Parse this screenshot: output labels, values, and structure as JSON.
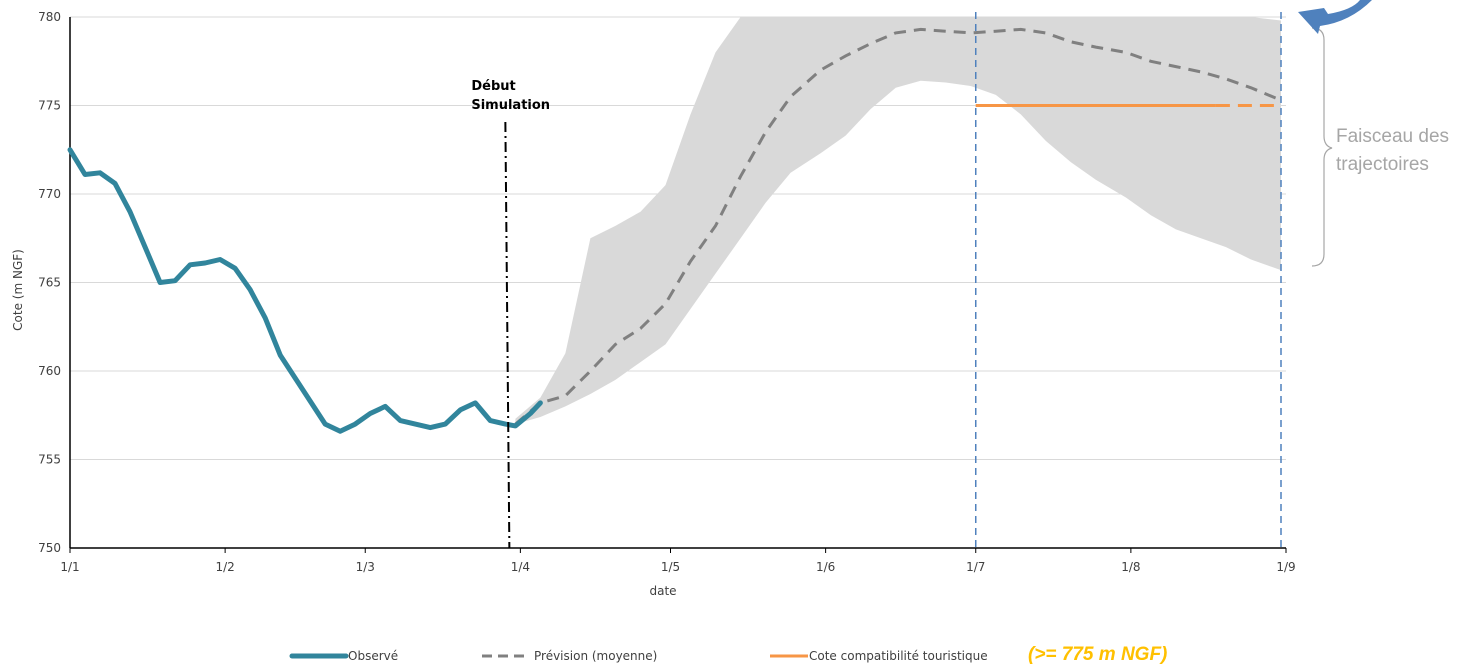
{
  "chart_data": {
    "type": "line",
    "xlabel": "date",
    "ylabel": "Cote (m NGF)",
    "ylim": [
      750,
      780
    ],
    "yticks": [
      750,
      755,
      760,
      765,
      770,
      775,
      780
    ],
    "xlim": [
      "01-01",
      "09-01"
    ],
    "x_ticks": [
      {
        "date": "01-01",
        "label": "1/1"
      },
      {
        "date": "02-01",
        "label": "1/2"
      },
      {
        "date": "03-01",
        "label": "1/3"
      },
      {
        "date": "04-01",
        "label": "1/4"
      },
      {
        "date": "05-01",
        "label": "1/5"
      },
      {
        "date": "06-01",
        "label": "1/6"
      },
      {
        "date": "07-01",
        "label": "1/7"
      },
      {
        "date": "08-01",
        "label": "1/8"
      },
      {
        "date": "09-01",
        "label": "1/9"
      }
    ],
    "grid": "horizontal",
    "legend_position": "bottom",
    "series": [
      {
        "name": "Observé",
        "style": "solid",
        "color": "#31859c",
        "x": [
          "01-01",
          "01-04",
          "01-07",
          "01-10",
          "01-13",
          "01-16",
          "01-19",
          "01-22",
          "01-25",
          "01-28",
          "01-31",
          "02-03",
          "02-06",
          "02-09",
          "02-12",
          "02-15",
          "02-18",
          "02-21",
          "02-24",
          "02-27",
          "03-02",
          "03-05",
          "03-08",
          "03-11",
          "03-14",
          "03-17",
          "03-20",
          "03-23",
          "03-26",
          "03-29",
          "03-31",
          "04-03",
          "04-05"
        ],
        "y": [
          772.5,
          771.1,
          771.2,
          770.6,
          769.0,
          767.0,
          765.0,
          765.1,
          766.0,
          766.1,
          766.3,
          765.8,
          764.6,
          763.0,
          760.9,
          759.6,
          758.3,
          757.0,
          756.6,
          757.0,
          757.6,
          758.0,
          757.2,
          757.0,
          756.8,
          757.0,
          757.8,
          758.2,
          757.2,
          757.0,
          756.9,
          757.6,
          758.2
        ]
      },
      {
        "name": "Prévision (moyenne)",
        "style": "dashed",
        "color": "#808080",
        "x": [
          "03-31",
          "04-05",
          "04-10",
          "04-15",
          "04-20",
          "04-25",
          "04-30",
          "05-05",
          "05-10",
          "05-15",
          "05-20",
          "05-25",
          "05-31",
          "06-05",
          "06-10",
          "06-15",
          "06-20",
          "06-25",
          "06-30",
          "07-05",
          "07-10",
          "07-15",
          "07-20",
          "07-25",
          "07-31",
          "08-05",
          "08-10",
          "08-15",
          "08-20",
          "08-25",
          "08-31"
        ],
        "y": [
          757.0,
          758.2,
          758.6,
          760.0,
          761.5,
          762.4,
          763.8,
          766.2,
          768.2,
          771.0,
          773.5,
          775.5,
          777.0,
          777.8,
          778.5,
          779.1,
          779.3,
          779.2,
          779.1,
          779.2,
          779.3,
          779.1,
          778.6,
          778.3,
          778.0,
          777.5,
          777.2,
          776.9,
          776.5,
          776.0,
          775.3
        ]
      },
      {
        "name": "Cote compatibilité touristique",
        "style": "solid",
        "color": "#f79646",
        "x": [
          "07-01",
          "08-18",
          "08-31"
        ],
        "y": [
          775,
          775,
          775
        ],
        "dashed_from": "08-18"
      }
    ],
    "band": {
      "name": "Faisceau des trajectoires",
      "color": "#d9d9d9",
      "x": [
        "03-31",
        "04-05",
        "04-10",
        "04-15",
        "04-20",
        "04-25",
        "04-30",
        "05-05",
        "05-10",
        "05-15",
        "05-20",
        "05-25",
        "05-31",
        "06-05",
        "06-10",
        "06-15",
        "06-20",
        "06-25",
        "06-30",
        "07-05",
        "07-10",
        "07-15",
        "07-20",
        "07-25",
        "07-31",
        "08-05",
        "08-10",
        "08-15",
        "08-20",
        "08-25",
        "08-31"
      ],
      "upper": [
        757.3,
        758.5,
        761.0,
        767.5,
        768.2,
        769.0,
        770.5,
        774.5,
        778.0,
        780.0,
        780.0,
        780.0,
        780.0,
        780.0,
        780.0,
        780.0,
        780.0,
        780.0,
        780.0,
        780.0,
        780.0,
        780.0,
        780.0,
        780.0,
        780.0,
        780.0,
        780.0,
        780.0,
        780.0,
        780.0,
        779.8
      ],
      "lower": [
        757.0,
        757.4,
        758.0,
        758.7,
        759.5,
        760.5,
        761.5,
        763.5,
        765.5,
        767.5,
        769.5,
        771.2,
        772.3,
        773.3,
        774.8,
        776.0,
        776.4,
        776.3,
        776.1,
        775.6,
        774.5,
        773.0,
        771.8,
        770.8,
        769.8,
        768.8,
        768.0,
        767.5,
        767.0,
        766.3,
        765.7
      ]
    },
    "annotations": {
      "start_simulation": {
        "date": "03-31",
        "text_line1": "Début",
        "text_line2": "Simulation"
      },
      "period_lines": [
        "07-01",
        "09-01"
      ],
      "band_label_line1": "Faisceau des",
      "band_label_line2": "trajectoires",
      "legend_note": "(>= 775 m NGF)"
    }
  }
}
